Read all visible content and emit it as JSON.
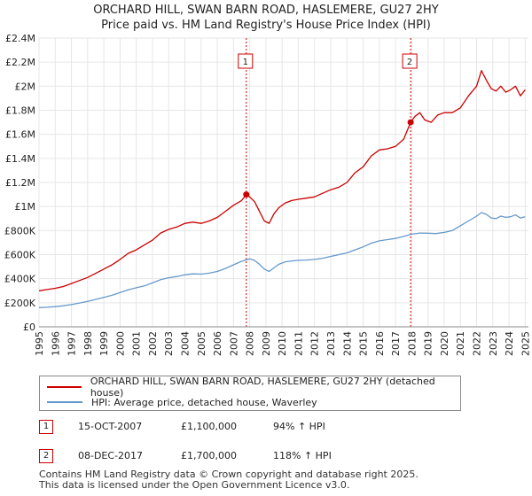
{
  "title_line1": "ORCHARD HILL, SWAN BARN ROAD, HASLEMERE, GU27 2HY",
  "title_line2": "Price paid vs. HM Land Registry's House Price Index (HPI)",
  "colors": {
    "property": "#cc0000",
    "hpi": "#6699cc",
    "grid": "#e6e6e6",
    "marker_border": "#cc0000"
  },
  "chart_data": {
    "type": "line",
    "title": "ORCHARD HILL, SWAN BARN ROAD, HASLEMERE, GU27 2HY — Price paid vs. HM Land Registry's House Price Index (HPI)",
    "xlabel": "",
    "ylabel": "",
    "xlim": [
      1995,
      2025.2
    ],
    "ylim": [
      0,
      2400000
    ],
    "x_ticks": [
      1995,
      1996,
      1997,
      1998,
      1999,
      2000,
      2001,
      2002,
      2003,
      2004,
      2005,
      2006,
      2007,
      2008,
      2009,
      2010,
      2011,
      2012,
      2013,
      2014,
      2015,
      2016,
      2017,
      2018,
      2019,
      2020,
      2021,
      2022,
      2023,
      2024,
      2025
    ],
    "x_tick_labels": [
      "1995",
      "1996",
      "1997",
      "1998",
      "1999",
      "2000",
      "2001",
      "2002",
      "2003",
      "2004",
      "2005",
      "2006",
      "2007",
      "2008",
      "2009",
      "2010",
      "2011",
      "2012",
      "2013",
      "2014",
      "2015",
      "2016",
      "2017",
      "2018",
      "2019",
      "2020",
      "2021",
      "2022",
      "2023",
      "2024",
      "2025"
    ],
    "y_ticks": [
      0,
      200000,
      400000,
      600000,
      800000,
      1000000,
      1200000,
      1400000,
      1600000,
      1800000,
      2000000,
      2200000,
      2400000
    ],
    "y_tick_labels": [
      "£0",
      "£200K",
      "£400K",
      "£600K",
      "£800K",
      "£1M",
      "£1.2M",
      "£1.4M",
      "£1.6M",
      "£1.8M",
      "£2M",
      "£2.2M",
      "£2.4M"
    ],
    "series": [
      {
        "name": "ORCHARD HILL, SWAN BARN ROAD, HASLEMERE, GU27 2HY (detached house)",
        "color": "#cc0000",
        "x": [
          1995.0,
          1995.5,
          1996.0,
          1996.5,
          1997.0,
          1997.5,
          1998.0,
          1998.5,
          1999.0,
          1999.5,
          2000.0,
          2000.5,
          2001.0,
          2001.5,
          2002.0,
          2002.5,
          2003.0,
          2003.5,
          2004.0,
          2004.5,
          2005.0,
          2005.5,
          2006.0,
          2006.5,
          2007.0,
          2007.5,
          2007.79,
          2008.0,
          2008.3,
          2008.6,
          2008.9,
          2009.2,
          2009.5,
          2009.8,
          2010.2,
          2010.6,
          2011.0,
          2011.5,
          2012.0,
          2012.5,
          2013.0,
          2013.5,
          2014.0,
          2014.5,
          2015.0,
          2015.5,
          2016.0,
          2016.5,
          2017.0,
          2017.5,
          2017.93,
          2018.2,
          2018.5,
          2018.8,
          2019.2,
          2019.6,
          2020.0,
          2020.5,
          2021.0,
          2021.5,
          2022.0,
          2022.3,
          2022.6,
          2022.9,
          2023.2,
          2023.5,
          2023.8,
          2024.1,
          2024.4,
          2024.7,
          2025.0
        ],
        "values": [
          300000,
          310000,
          320000,
          335000,
          360000,
          385000,
          410000,
          445000,
          480000,
          515000,
          560000,
          610000,
          640000,
          680000,
          720000,
          780000,
          810000,
          830000,
          860000,
          870000,
          860000,
          880000,
          910000,
          960000,
          1010000,
          1050000,
          1100000,
          1080000,
          1040000,
          960000,
          880000,
          860000,
          940000,
          990000,
          1030000,
          1050000,
          1060000,
          1070000,
          1080000,
          1110000,
          1140000,
          1160000,
          1200000,
          1280000,
          1330000,
          1420000,
          1470000,
          1480000,
          1500000,
          1560000,
          1700000,
          1750000,
          1780000,
          1720000,
          1700000,
          1760000,
          1780000,
          1780000,
          1820000,
          1920000,
          2000000,
          2130000,
          2050000,
          1980000,
          1960000,
          2000000,
          1950000,
          1970000,
          2000000,
          1920000,
          1970000
        ]
      },
      {
        "name": "HPI: Average price, detached house, Waverley",
        "color": "#6699cc",
        "x": [
          1995.0,
          1995.5,
          1996.0,
          1996.5,
          1997.0,
          1997.5,
          1998.0,
          1998.5,
          1999.0,
          1999.5,
          2000.0,
          2000.5,
          2001.0,
          2001.5,
          2002.0,
          2002.5,
          2003.0,
          2003.5,
          2004.0,
          2004.5,
          2005.0,
          2005.5,
          2006.0,
          2006.5,
          2007.0,
          2007.5,
          2008.0,
          2008.3,
          2008.6,
          2008.9,
          2009.2,
          2009.5,
          2009.8,
          2010.2,
          2010.6,
          2011.0,
          2011.5,
          2012.0,
          2012.5,
          2013.0,
          2013.5,
          2014.0,
          2014.5,
          2015.0,
          2015.5,
          2016.0,
          2016.5,
          2017.0,
          2017.5,
          2018.0,
          2018.5,
          2019.0,
          2019.5,
          2020.0,
          2020.5,
          2021.0,
          2021.5,
          2022.0,
          2022.3,
          2022.6,
          2022.9,
          2023.2,
          2023.5,
          2023.8,
          2024.1,
          2024.4,
          2024.7,
          2025.0
        ],
        "values": [
          160000,
          163000,
          168000,
          175000,
          185000,
          198000,
          212000,
          228000,
          245000,
          262000,
          285000,
          308000,
          325000,
          340000,
          365000,
          392000,
          408000,
          418000,
          432000,
          440000,
          438000,
          446000,
          460000,
          485000,
          515000,
          545000,
          565000,
          552000,
          520000,
          480000,
          460000,
          490000,
          520000,
          540000,
          548000,
          553000,
          555000,
          560000,
          570000,
          585000,
          600000,
          615000,
          640000,
          665000,
          695000,
          715000,
          725000,
          735000,
          752000,
          770000,
          780000,
          778000,
          775000,
          785000,
          800000,
          840000,
          880000,
          920000,
          950000,
          935000,
          905000,
          900000,
          920000,
          910000,
          915000,
          930000,
          905000,
          915000
        ]
      }
    ],
    "annotations": [
      {
        "label": "1",
        "x": 2007.79,
        "value": 1100000
      },
      {
        "label": "2",
        "x": 2017.93,
        "value": 1700000
      }
    ],
    "legend_position": "bottom"
  },
  "legend": {
    "property_label": "ORCHARD HILL, SWAN BARN ROAD, HASLEMERE, GU27 2HY (detached house)",
    "hpi_label": "HPI: Average price, detached house, Waverley"
  },
  "sales": [
    {
      "num": "1",
      "date": "15-OCT-2007",
      "price": "£1,100,000",
      "hpi": "94% ↑ HPI"
    },
    {
      "num": "2",
      "date": "08-DEC-2017",
      "price": "£1,700,000",
      "hpi": "118% ↑ HPI"
    }
  ],
  "footer_line1": "Contains HM Land Registry data © Crown copyright and database right 2025.",
  "footer_line2": "This data is licensed under the Open Government Licence v3.0."
}
